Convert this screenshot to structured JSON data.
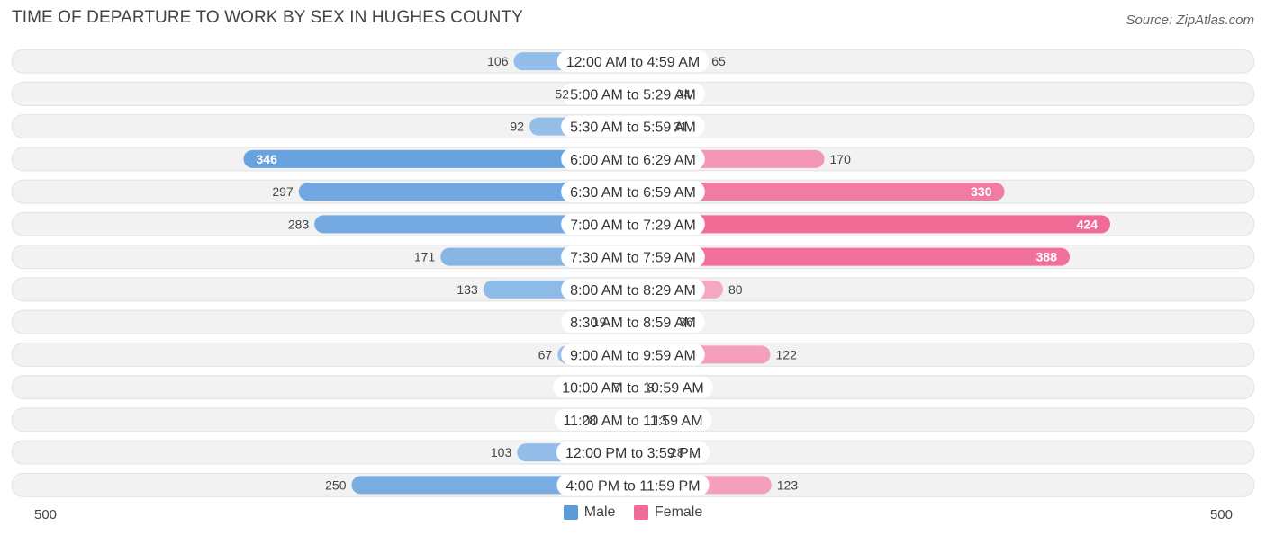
{
  "header": {
    "title": "TIME OF DEPARTURE TO WORK BY SEX IN HUGHES COUNTY",
    "source": "Source: ZipAtlas.com"
  },
  "axis": {
    "left_label": "500",
    "right_label": "500"
  },
  "legend": {
    "male_label": "Male",
    "female_label": "Female",
    "male_color": "#5b9bdc",
    "female_color": "#f06b95"
  },
  "chart_data": {
    "type": "bar",
    "orientation": "horizontal-diverging",
    "title": "TIME OF DEPARTURE TO WORK BY SEX IN HUGHES COUNTY",
    "xlim": [
      -500,
      500
    ],
    "categories": [
      "12:00 AM to 4:59 AM",
      "5:00 AM to 5:29 AM",
      "5:30 AM to 5:59 AM",
      "6:00 AM to 6:29 AM",
      "6:30 AM to 6:59 AM",
      "7:00 AM to 7:29 AM",
      "7:30 AM to 7:59 AM",
      "8:00 AM to 8:29 AM",
      "8:30 AM to 8:59 AM",
      "9:00 AM to 9:59 AM",
      "10:00 AM to 10:59 AM",
      "11:00 AM to 11:59 AM",
      "12:00 PM to 3:59 PM",
      "4:00 PM to 11:59 PM"
    ],
    "series": [
      {
        "name": "Male",
        "values": [
          106,
          52,
          92,
          346,
          297,
          283,
          171,
          133,
          19,
          67,
          7,
          28,
          103,
          250
        ]
      },
      {
        "name": "Female",
        "values": [
          65,
          34,
          31,
          170,
          330,
          424,
          388,
          80,
          36,
          122,
          8,
          13,
          28,
          123
        ]
      }
    ]
  }
}
